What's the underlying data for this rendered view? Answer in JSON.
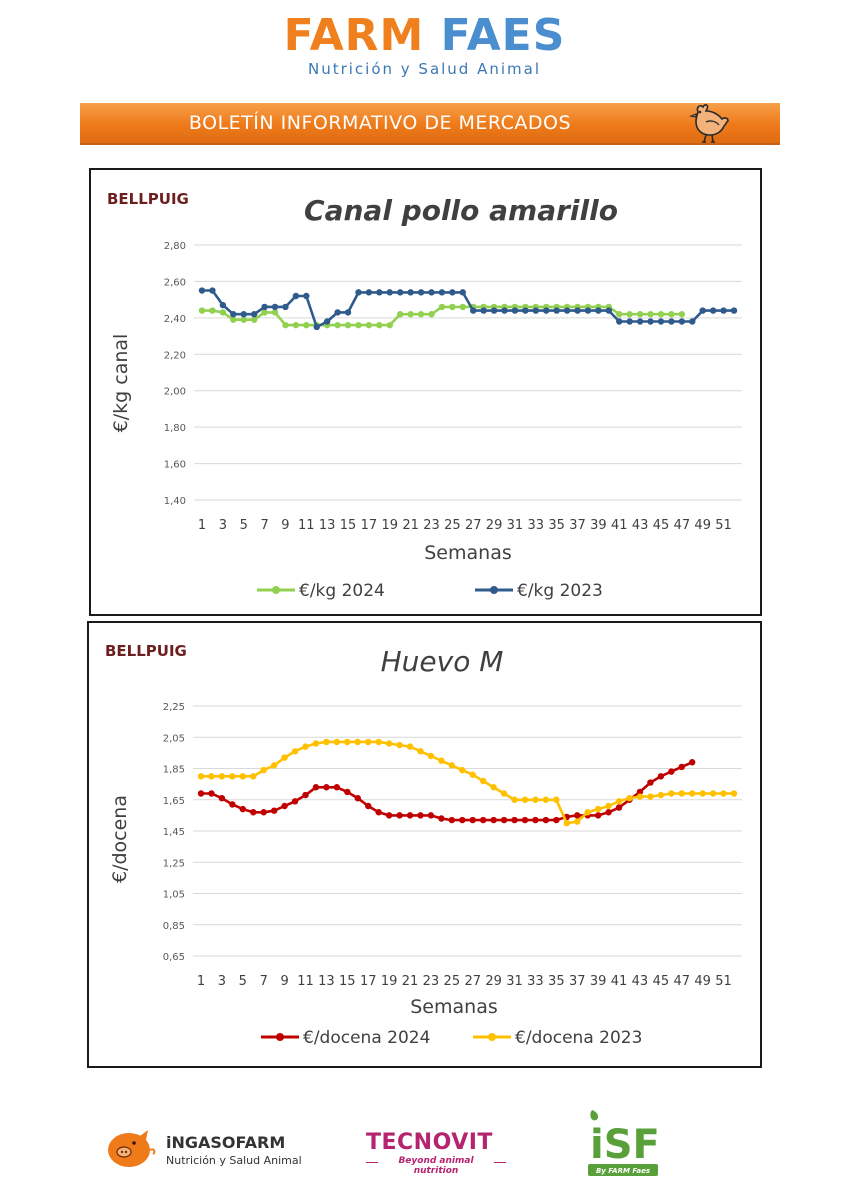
{
  "header": {
    "logo_part1": "FARM",
    "logo_part2": "FAES",
    "logo_subtitle": "Nutrición y Salud Animal",
    "banner_title": "BOLETÍN INFORMATIVO DE MERCADOS"
  },
  "footer": {
    "ingaso_bold": "iNGASO",
    "ingaso_thin": "FARM",
    "ingaso_subtitle": "Nutrición y Salud Animal",
    "tecnovit_name": "TECNOVIT",
    "tecnovit_tagline": "Beyond animal nutrition",
    "isf_name": "iSF",
    "isf_tagline": "By FARM Faes"
  },
  "colors": {
    "orange": "#ee7a1a",
    "blue": "#4a8ed0",
    "green_2024": "#92d050",
    "blue_2023": "#2f5a8c",
    "red_2024": "#c00000",
    "yellow_2023": "#ffc000"
  },
  "chart_data": [
    {
      "type": "line",
      "location": "BELLPUIG",
      "title": "Canal pollo amarillo",
      "xlabel": "Semanas",
      "ylabel": "€/kg canal",
      "ylim": [
        1.4,
        2.8
      ],
      "yticks": [
        "1,40",
        "1,60",
        "1,80",
        "2,00",
        "2,20",
        "2,40",
        "2,60",
        "2,80"
      ],
      "xticks": [
        "1",
        "3",
        "5",
        "7",
        "9",
        "11",
        "13",
        "15",
        "17",
        "19",
        "21",
        "23",
        "25",
        "27",
        "29",
        "31",
        "33",
        "35",
        "37",
        "39",
        "41",
        "43",
        "45",
        "47",
        "49",
        "51"
      ],
      "grid": true,
      "legend": "bottom",
      "series": [
        {
          "name": "€/kg 2024",
          "color": "#92d050",
          "values": [
            2.44,
            2.44,
            2.43,
            2.39,
            2.39,
            2.39,
            2.43,
            2.43,
            2.36,
            2.36,
            2.36,
            2.36,
            2.36,
            2.36,
            2.36,
            2.36,
            2.36,
            2.36,
            2.36,
            2.42,
            2.42,
            2.42,
            2.42,
            2.46,
            2.46,
            2.46,
            2.46,
            2.46,
            2.46,
            2.46,
            2.46,
            2.46,
            2.46,
            2.46,
            2.46,
            2.46,
            2.46,
            2.46,
            2.46,
            2.46,
            2.42,
            2.42,
            2.42,
            2.42,
            2.42,
            2.42,
            2.42
          ]
        },
        {
          "name": "€/kg 2023",
          "color": "#2f5a8c",
          "values": [
            2.55,
            2.55,
            2.47,
            2.42,
            2.42,
            2.42,
            2.46,
            2.46,
            2.46,
            2.52,
            2.52,
            2.35,
            2.38,
            2.43,
            2.43,
            2.54,
            2.54,
            2.54,
            2.54,
            2.54,
            2.54,
            2.54,
            2.54,
            2.54,
            2.54,
            2.54,
            2.44,
            2.44,
            2.44,
            2.44,
            2.44,
            2.44,
            2.44,
            2.44,
            2.44,
            2.44,
            2.44,
            2.44,
            2.44,
            2.44,
            2.38,
            2.38,
            2.38,
            2.38,
            2.38,
            2.38,
            2.38,
            2.38,
            2.44,
            2.44,
            2.44,
            2.44
          ]
        }
      ]
    },
    {
      "type": "line",
      "location": "BELLPUIG",
      "title": "Huevo M",
      "xlabel": "Semanas",
      "ylabel": "€/docena",
      "ylim": [
        0.65,
        2.25
      ],
      "yticks": [
        "0,65",
        "0,85",
        "1,05",
        "1,25",
        "1,45",
        "1,65",
        "1,85",
        "2,05",
        "2,25"
      ],
      "xticks": [
        "1",
        "3",
        "5",
        "7",
        "9",
        "11",
        "13",
        "15",
        "17",
        "19",
        "21",
        "23",
        "25",
        "27",
        "29",
        "31",
        "33",
        "35",
        "37",
        "39",
        "41",
        "43",
        "45",
        "47",
        "49",
        "51"
      ],
      "grid": true,
      "legend": "bottom",
      "series": [
        {
          "name": "€/docena 2024",
          "color": "#c00000",
          "values": [
            1.69,
            1.69,
            1.66,
            1.62,
            1.59,
            1.57,
            1.57,
            1.58,
            1.61,
            1.64,
            1.68,
            1.73,
            1.73,
            1.73,
            1.7,
            1.66,
            1.61,
            1.57,
            1.55,
            1.55,
            1.55,
            1.55,
            1.55,
            1.53,
            1.52,
            1.52,
            1.52,
            1.52,
            1.52,
            1.52,
            1.52,
            1.52,
            1.52,
            1.52,
            1.52,
            1.54,
            1.55,
            1.55,
            1.55,
            1.57,
            1.6,
            1.65,
            1.7,
            1.76,
            1.8,
            1.83,
            1.86,
            1.89
          ]
        },
        {
          "name": "€/docena 2023",
          "color": "#ffc000",
          "values": [
            1.8,
            1.8,
            1.8,
            1.8,
            1.8,
            1.8,
            1.84,
            1.87,
            1.92,
            1.96,
            1.99,
            2.01,
            2.02,
            2.02,
            2.02,
            2.02,
            2.02,
            2.02,
            2.01,
            2.0,
            1.99,
            1.96,
            1.93,
            1.9,
            1.87,
            1.84,
            1.81,
            1.77,
            1.73,
            1.69,
            1.65,
            1.65,
            1.65,
            1.65,
            1.65,
            1.5,
            1.51,
            1.57,
            1.59,
            1.61,
            1.64,
            1.66,
            1.67,
            1.67,
            1.68,
            1.69,
            1.69,
            1.69,
            1.69,
            1.69,
            1.69,
            1.69
          ]
        }
      ]
    }
  ]
}
